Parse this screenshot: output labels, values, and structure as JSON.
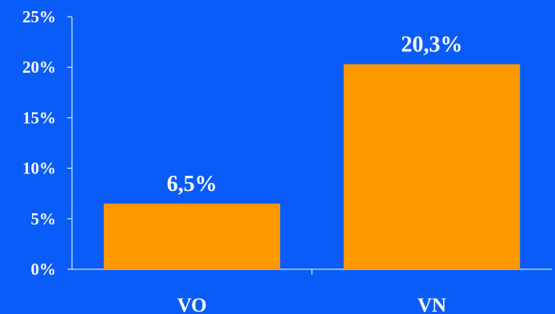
{
  "chart_data": {
    "type": "bar",
    "categories": [
      "VO",
      "VN"
    ],
    "values": [
      6.5,
      20.3
    ],
    "data_labels": [
      "6,5%",
      "20,3%"
    ],
    "ylim": [
      0,
      25
    ],
    "yticks": [
      0,
      5,
      10,
      15,
      20,
      25
    ],
    "ytick_labels": [
      "0%",
      "5%",
      "10%",
      "15%",
      "20%",
      "25%"
    ],
    "title": "",
    "xlabel": "",
    "ylabel": "",
    "grid": false,
    "legend": "none",
    "colors": {
      "background": "#0A5CF8",
      "bar": "#FF9900",
      "axis": "#FFFFFF",
      "text": "#FFFFFF"
    }
  }
}
